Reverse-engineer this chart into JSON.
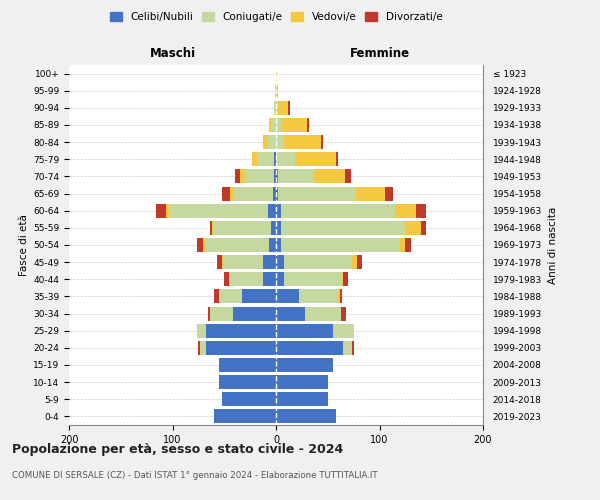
{
  "age_groups": [
    "0-4",
    "5-9",
    "10-14",
    "15-19",
    "20-24",
    "25-29",
    "30-34",
    "35-39",
    "40-44",
    "45-49",
    "50-54",
    "55-59",
    "60-64",
    "65-69",
    "70-74",
    "75-79",
    "80-84",
    "85-89",
    "90-94",
    "95-99",
    "100+"
  ],
  "birth_years": [
    "2019-2023",
    "2014-2018",
    "2009-2013",
    "2004-2008",
    "1999-2003",
    "1994-1998",
    "1989-1993",
    "1984-1988",
    "1979-1983",
    "1974-1978",
    "1969-1973",
    "1964-1968",
    "1959-1963",
    "1954-1958",
    "1949-1953",
    "1944-1948",
    "1939-1943",
    "1934-1938",
    "1929-1933",
    "1924-1928",
    "≤ 1923"
  ],
  "maschi": {
    "celibe": [
      60,
      52,
      55,
      55,
      68,
      68,
      42,
      33,
      13,
      13,
      7,
      5,
      8,
      3,
      2,
      2,
      0,
      0,
      0,
      0,
      0
    ],
    "coniugato": [
      0,
      0,
      0,
      0,
      5,
      8,
      22,
      22,
      32,
      38,
      62,
      55,
      95,
      38,
      28,
      16,
      8,
      5,
      2,
      1,
      0
    ],
    "vedovo": [
      0,
      0,
      0,
      0,
      0,
      0,
      0,
      0,
      0,
      1,
      2,
      2,
      3,
      3,
      5,
      5,
      5,
      2,
      0,
      0,
      0
    ],
    "divorziato": [
      0,
      0,
      0,
      0,
      2,
      0,
      2,
      5,
      5,
      5,
      5,
      2,
      10,
      8,
      5,
      0,
      0,
      0,
      0,
      0,
      0
    ]
  },
  "femmine": {
    "nubile": [
      58,
      50,
      50,
      55,
      65,
      55,
      28,
      22,
      8,
      8,
      5,
      5,
      5,
      2,
      2,
      0,
      0,
      0,
      0,
      0,
      0
    ],
    "coniugata": [
      0,
      0,
      0,
      0,
      8,
      20,
      35,
      38,
      55,
      65,
      115,
      120,
      110,
      75,
      35,
      18,
      8,
      5,
      2,
      0,
      0
    ],
    "vedova": [
      0,
      0,
      0,
      0,
      0,
      0,
      0,
      2,
      2,
      5,
      5,
      15,
      20,
      28,
      30,
      40,
      35,
      25,
      10,
      2,
      1
    ],
    "divorziata": [
      0,
      0,
      0,
      0,
      2,
      0,
      5,
      2,
      5,
      5,
      5,
      5,
      10,
      8,
      5,
      2,
      2,
      2,
      2,
      0,
      0
    ]
  },
  "colors": {
    "celibe": "#4472C4",
    "coniugato": "#C5D8A0",
    "vedovo": "#F5C842",
    "divorziato": "#C0392B"
  },
  "title": "Popolazione per età, sesso e stato civile - 2024",
  "subtitle": "COMUNE DI SERSALE (CZ) - Dati ISTAT 1° gennaio 2024 - Elaborazione TUTTITALIA.IT",
  "xlabel_left": "Maschi",
  "xlabel_right": "Femmine",
  "ylabel_left": "Fasce di età",
  "ylabel_right": "Anni di nascita",
  "xlim": 200,
  "background_color": "#f0f0f0",
  "plot_bg": "#ffffff"
}
